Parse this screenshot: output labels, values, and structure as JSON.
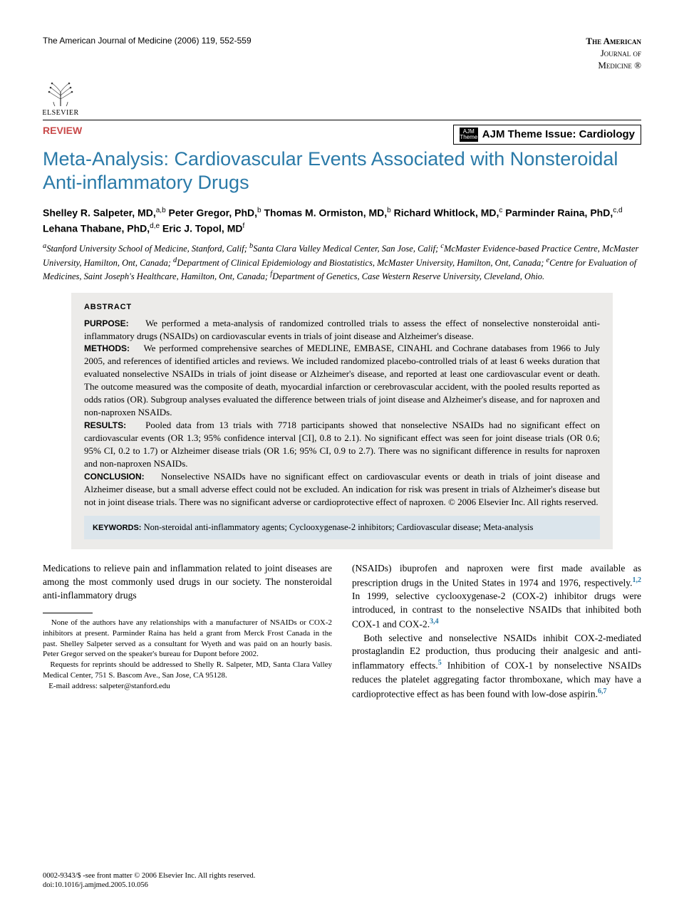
{
  "journal_header": "The American Journal of Medicine (2006) 119, 552-559",
  "journal_logo": {
    "line1": "The American",
    "line2": "Journal of",
    "line3": "Medicine ®"
  },
  "publisher": "ELSEVIER",
  "section_label": "REVIEW",
  "theme_badge": {
    "icon_top": "AJM",
    "icon_bottom": "Theme",
    "text": "AJM Theme Issue: Cardiology"
  },
  "title": "Meta-Analysis: Cardiovascular Events Associated with Nonsteroidal Anti-inflammatory Drugs",
  "authors_html": "Shelley R. Salpeter, MD,<sup>a,b</sup> Peter Gregor, PhD,<sup>b</sup> Thomas M. Ormiston, MD,<sup>b</sup> Richard Whitlock, MD,<sup>c</sup> Parminder Raina, PhD,<sup>c,d</sup> Lehana Thabane, PhD,<sup>d,e</sup> Eric J. Topol, MD<sup>f</sup>",
  "affiliations_html": "<sup>a</sup>Stanford University School of Medicine, Stanford, Calif; <sup>b</sup>Santa Clara Valley Medical Center, San Jose, Calif; <sup>c</sup>McMaster Evidence-based Practice Centre, McMaster University, Hamilton, Ont, Canada; <sup>d</sup>Department of Clinical Epidemiology and Biostatistics, McMaster University, Hamilton, Ont, Canada; <sup>e</sup>Centre for Evaluation of Medicines, Saint Joseph's Healthcare, Hamilton, Ont, Canada; <sup>f</sup>Department of Genetics, Case Western Reserve University, Cleveland, Ohio.",
  "abstract": {
    "heading": "ABSTRACT",
    "purpose_label": "PURPOSE:",
    "purpose": "We performed a meta-analysis of randomized controlled trials to assess the effect of nonselective nonsteroidal anti-inflammatory drugs (NSAIDs) on cardiovascular events in trials of joint disease and Alzheimer's disease.",
    "methods_label": "METHODS:",
    "methods": "We performed comprehensive searches of MEDLINE, EMBASE, CINAHL and Cochrane databases from 1966 to July 2005, and references of identified articles and reviews. We included randomized placebo-controlled trials of at least 6 weeks duration that evaluated nonselective NSAIDs in trials of joint disease or Alzheimer's disease, and reported at least one cardiovascular event or death. The outcome measured was the composite of death, myocardial infarction or cerebrovascular accident, with the pooled results reported as odds ratios (OR). Subgroup analyses evaluated the difference between trials of joint disease and Alzheimer's disease, and for naproxen and non-naproxen NSAIDs.",
    "results_label": "RESULTS:",
    "results": "Pooled data from 13 trials with 7718 participants showed that nonselective NSAIDs had no significant effect on cardiovascular events (OR 1.3; 95% confidence interval [CI], 0.8 to 2.1). No significant effect was seen for joint disease trials (OR 0.6; 95% CI, 0.2 to 1.7) or Alzheimer disease trials (OR 1.6; 95% CI, 0.9 to 2.7). There was no significant difference in results for naproxen and non-naproxen NSAIDs.",
    "conclusion_label": "CONCLUSION:",
    "conclusion": "Nonselective NSAIDs have no significant effect on cardiovascular events or death in trials of joint disease and Alzheimer disease, but a small adverse effect could not be excluded. An indication for risk was present in trials of Alzheimer's disease but not in joint disease trials. There was no significant adverse or cardioprotective effect of naproxen. © 2006 Elsevier Inc. All rights reserved."
  },
  "keywords": {
    "label": "KEYWORDS:",
    "text": "Non-steroidal anti-inflammatory agents; Cyclooxygenase-2 inhibitors; Cardiovascular disease; Meta-analysis"
  },
  "body": {
    "left_p1": "Medications to relieve pain and inflammation related to joint diseases are among the most commonly used drugs in our society. The nonsteroidal anti-inflammatory drugs",
    "right_p1_html": "(NSAIDs) ibuprofen and naproxen were first made available as prescription drugs in the United States in 1974 and 1976, respectively.<sup class=\"ref\">1,2</sup> In 1999, selective cyclooxygenase-2 (COX-2) inhibitor drugs were introduced, in contrast to the nonselective NSAIDs that inhibited both COX-1 and COX-2.<sup class=\"ref\">3,4</sup>",
    "right_p2_html": "Both selective and nonselective NSAIDs inhibit COX-2-mediated prostaglandin E2 production, thus producing their analgesic and anti-inflammatory effects.<sup class=\"ref\">5</sup> Inhibition of COX-1 by nonselective NSAIDs reduces the platelet aggregating factor thromboxane, which may have a cardioprotective effect as has been found with low-dose aspirin.<sup class=\"ref\">6,7</sup>"
  },
  "footnotes": {
    "conflict": "None of the authors have any relationships with a manufacturer of NSAIDs or COX-2 inhibitors at present. Parminder Raina has held a grant from Merck Frost Canada in the past. Shelley Salpeter served as a consultant for Wyeth and was paid on an hourly basis. Peter Gregor served on the speaker's bureau for Dupont before 2002.",
    "reprints": "Requests for reprints should be addressed to Shelly R. Salpeter, MD, Santa Clara Valley Medical Center, 751 S. Bascom Ave., San Jose, CA 95128.",
    "email_label": "E-mail address:",
    "email": "salpeter@stanford.edu"
  },
  "footer": {
    "line1": "0002-9343/$ -see front matter © 2006 Elsevier Inc. All rights reserved.",
    "line2": "doi:10.1016/j.amjmed.2005.10.056"
  },
  "colors": {
    "title_blue": "#2a7aa8",
    "review_red": "#c94a4a",
    "abstract_bg": "#ecebe9",
    "keywords_bg": "#dbe5ec",
    "ref_blue": "#2a7aa8"
  }
}
